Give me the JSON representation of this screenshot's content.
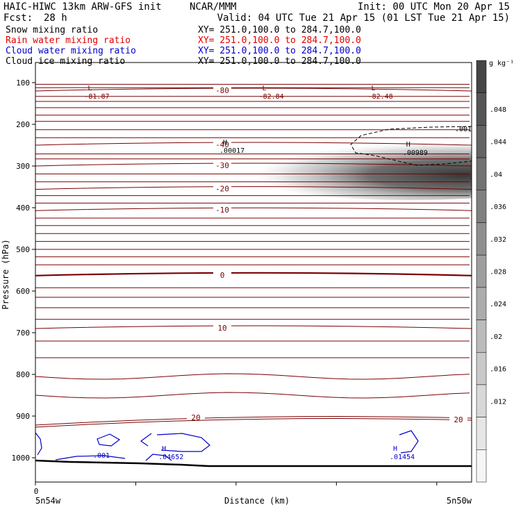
{
  "header": {
    "title_left": "HAIC-HIWC 13km ARW-GFS init",
    "title_center": "NCAR/MMM",
    "init": "Init: 00 UTC Mon 20 Apr 15",
    "fcst_label": "Fcst:",
    "fcst_value": "28 h",
    "valid": "Valid: 04 UTC Tue 21 Apr 15 (01 LST Tue 21 Apr 15)"
  },
  "fields": [
    {
      "name": "Snow mixing ratio",
      "xy": "XY= 251.0,100.0 to 284.7,100.0",
      "color": "#000000"
    },
    {
      "name": "Rain water mixing ratio",
      "xy": "XY= 251.0,100.0 to 284.7,100.0",
      "color": "#e00000"
    },
    {
      "name": "Cloud water mixing ratio",
      "xy": "XY= 251.0,100.0 to 284.7,100.0",
      "color": "#0000cc"
    },
    {
      "name": "Cloud ice mixing ratio",
      "xy": "XY= 251.0,100.0 to 284.7,100.0",
      "color": "#000000"
    }
  ],
  "colorbar": {
    "unit": "g kg⁻¹",
    "ticks": [
      ".048",
      ".044",
      ".04",
      ".036",
      ".032",
      ".028",
      ".024",
      ".02",
      ".016",
      ".012"
    ]
  },
  "chart_data": {
    "type": "heatmap",
    "ylabel": "Pressure (hPa)",
    "xlabel": "Distance (km)",
    "x_start_label": "0",
    "x_left_label": "5n54w",
    "x_right_label": "5n50w",
    "y_ticks": [
      100,
      200,
      300,
      400,
      500,
      600,
      700,
      800,
      900,
      1000
    ],
    "ylim": [
      1050,
      50
    ],
    "colors": {
      "temperature": "#7a0000",
      "cloud_water": "#0000cc",
      "ice": "#000000"
    },
    "temperature_contours": [
      {
        "label": "-80",
        "p": 120
      },
      {
        "label": "-40",
        "p": 250
      },
      {
        "label": "-30",
        "p": 300
      },
      {
        "label": "-20",
        "p": 356
      },
      {
        "label": "-10",
        "p": 407
      },
      {
        "label": "0",
        "p": 563
      },
      {
        "label": "10",
        "p": 690
      },
      {
        "label": "20",
        "p": 915
      },
      {
        "label": "20",
        "p": 920
      }
    ],
    "extrema": [
      {
        "type": "L",
        "value": "-81.87",
        "x": 0.12,
        "p": 95,
        "color": "temperature"
      },
      {
        "type": "L",
        "value": "-82.84",
        "x": 0.52,
        "p": 95,
        "color": "temperature"
      },
      {
        "type": "L",
        "value": "-82.48",
        "x": 0.77,
        "p": 95,
        "color": "temperature"
      },
      {
        "type": "H",
        "value": ".00017",
        "x": 0.43,
        "p": 225,
        "color": "ice"
      },
      {
        "type": "H",
        "value": ".00989",
        "x": 0.85,
        "p": 230,
        "color": "ice"
      },
      {
        "type": "H",
        "value": ".04652",
        "x": 0.29,
        "p": 960,
        "color": "cloud_water"
      },
      {
        "type": "H",
        "value": ".01454",
        "x": 0.82,
        "p": 960,
        "color": "cloud_water"
      }
    ],
    "ice_contour_label": ".001",
    "cloud_water_contour_label": ".001",
    "snow_max_region": {
      "x_range": [
        0.52,
        1.0
      ],
      "p_range": [
        240,
        340
      ],
      "max": 0.048
    }
  }
}
